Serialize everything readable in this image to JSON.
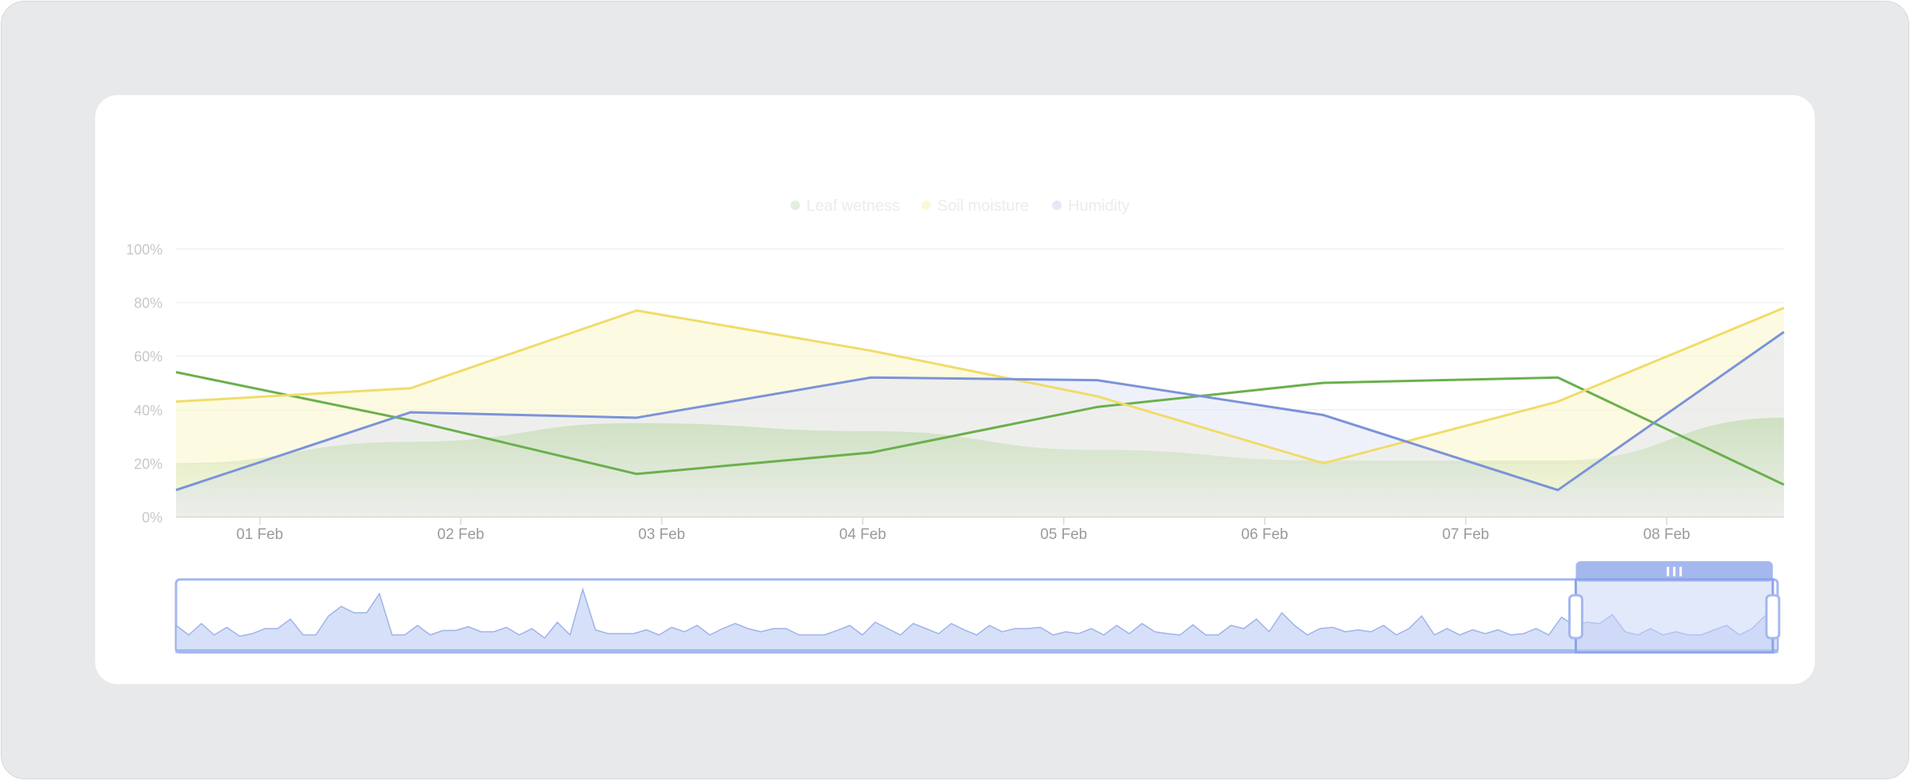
{
  "chart_data": {
    "type": "line",
    "title": "",
    "xlabel": "",
    "ylabel": "",
    "ylim": [
      0,
      100
    ],
    "y_ticks": [
      "0%",
      "20%",
      "40%",
      "60%",
      "80%",
      "100%"
    ],
    "x_ticks": [
      "01 Feb",
      "02 Feb",
      "03 Feb",
      "04 Feb",
      "05 Feb",
      "06 Feb",
      "07 Feb",
      "08 Feb"
    ],
    "xlim": [
      "31 Jan 14:00",
      "08 Feb 14:00"
    ],
    "grid": true,
    "legend_position": "top-center",
    "x": [
      "31 Jan 14:00",
      "01 Feb 18:00",
      "02 Feb 21:00",
      "04 Feb 01:00",
      "05 Feb 04:00",
      "06 Feb 07:00",
      "07 Feb 11:00",
      "08 Feb 14:00"
    ],
    "series": [
      {
        "name": "Leaf wetness",
        "color": "#6ab04c",
        "values": [
          54,
          36,
          16,
          24,
          41,
          50,
          52,
          12
        ],
        "area_values": [
          20,
          28,
          35,
          32,
          25,
          21,
          21,
          37
        ]
      },
      {
        "name": "Soil moisture",
        "color": "#f0dc6a",
        "values": [
          43,
          48,
          77,
          62,
          45,
          20,
          43,
          78
        ]
      },
      {
        "name": "Humidity",
        "color": "#7b93d8",
        "values": [
          10,
          39,
          37,
          52,
          51,
          38,
          10,
          69
        ]
      }
    ],
    "navigator": {
      "color": "#a5b8ee",
      "selected_range": [
        0.874,
        0.997
      ],
      "values": [
        0.35,
        0.2,
        0.38,
        0.2,
        0.32,
        0.18,
        0.22,
        0.3,
        0.3,
        0.45,
        0.2,
        0.2,
        0.5,
        0.65,
        0.55,
        0.55,
        0.85,
        0.2,
        0.2,
        0.35,
        0.2,
        0.27,
        0.27,
        0.33,
        0.25,
        0.25,
        0.32,
        0.2,
        0.3,
        0.15,
        0.4,
        0.2,
        0.92,
        0.28,
        0.22,
        0.22,
        0.22,
        0.28,
        0.2,
        0.32,
        0.25,
        0.35,
        0.2,
        0.3,
        0.38,
        0.3,
        0.25,
        0.3,
        0.3,
        0.2,
        0.2,
        0.2,
        0.27,
        0.35,
        0.2,
        0.4,
        0.3,
        0.2,
        0.38,
        0.3,
        0.22,
        0.38,
        0.28,
        0.2,
        0.35,
        0.25,
        0.3,
        0.3,
        0.32,
        0.2,
        0.25,
        0.22,
        0.3,
        0.2,
        0.35,
        0.22,
        0.38,
        0.25,
        0.22,
        0.2,
        0.36,
        0.2,
        0.2,
        0.35,
        0.3,
        0.45,
        0.25,
        0.55,
        0.35,
        0.2,
        0.3,
        0.32,
        0.25,
        0.28,
        0.25,
        0.35,
        0.2,
        0.3,
        0.5,
        0.2,
        0.3,
        0.2,
        0.28,
        0.22,
        0.28,
        0.2,
        0.22,
        0.3,
        0.2,
        0.48,
        0.35,
        0.4,
        0.38,
        0.52,
        0.25,
        0.2,
        0.3,
        0.2,
        0.25,
        0.2,
        0.2,
        0.28,
        0.35,
        0.2,
        0.3,
        0.5,
        0.3
      ]
    }
  }
}
